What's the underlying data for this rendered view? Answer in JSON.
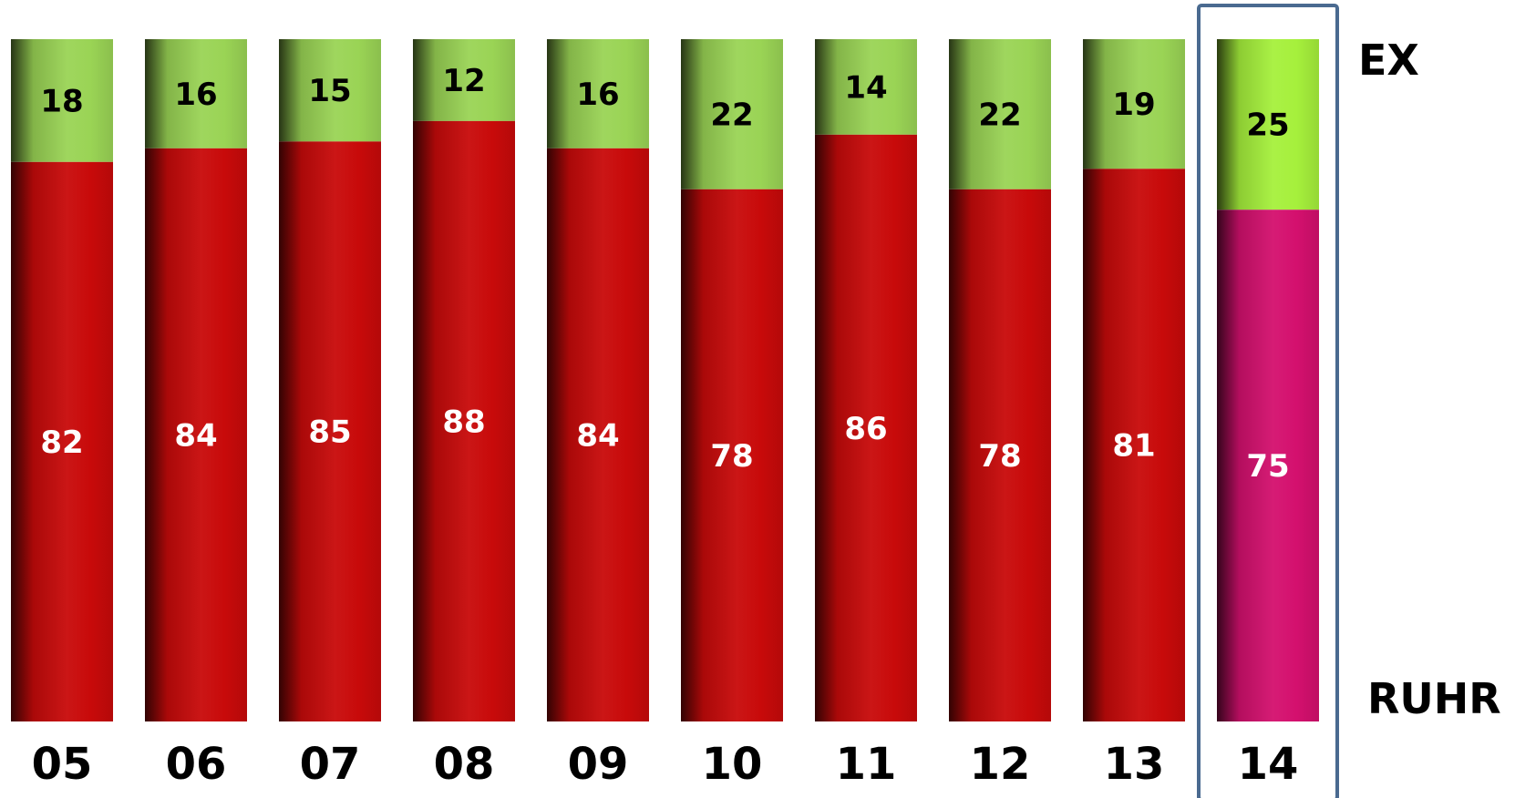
{
  "chart_data": {
    "type": "bar",
    "stacked": true,
    "normalized_percent": true,
    "categories": [
      "05",
      "06",
      "07",
      "08",
      "09",
      "10",
      "11",
      "12",
      "13",
      "14"
    ],
    "series": [
      {
        "name": "RUHR",
        "values": [
          82,
          84,
          85,
          88,
          84,
          78,
          86,
          78,
          81,
          75
        ],
        "color": "#c80a0a",
        "highlight_color": "#d4106e"
      },
      {
        "name": "EX",
        "values": [
          18,
          16,
          15,
          12,
          16,
          22,
          14,
          22,
          19,
          25
        ],
        "color": "#9ad455",
        "highlight_color": "#a6f03c"
      }
    ],
    "highlighted_category": "14",
    "highlight_frame_color": "#4a6a90",
    "legend_placement": "right",
    "grid": false
  }
}
